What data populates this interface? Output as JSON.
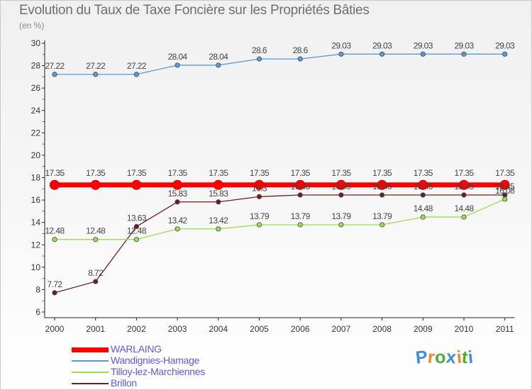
{
  "chart_data": {
    "type": "line",
    "title": "Evolution du Taux de Taxe Foncière sur les Propriétés Bâties",
    "ylabel": "(en %)",
    "xlabel": "",
    "categories": [
      "2000",
      "2001",
      "2002",
      "2003",
      "2004",
      "2005",
      "2006",
      "2007",
      "2008",
      "2009",
      "2010",
      "2011"
    ],
    "ylim": [
      6,
      30
    ],
    "yticks": [
      "6",
      "8",
      "10",
      "12",
      "14",
      "16",
      "18",
      "20",
      "22",
      "24",
      "26",
      "28",
      "30"
    ],
    "grid": false,
    "legend_position": "bottom-left",
    "series": [
      {
        "name": "WARLAING",
        "color": "#ff0000",
        "values": [
          17.35,
          17.35,
          17.35,
          17.35,
          17.35,
          17.35,
          17.35,
          17.35,
          17.35,
          17.35,
          17.35,
          17.35
        ],
        "labels": [
          "17.35",
          "17.35",
          "17.35",
          "17.35",
          "17.35",
          "17.35",
          "17.35",
          "17.35",
          "17.35",
          "17.35",
          "17.35",
          "17.35"
        ]
      },
      {
        "name": "Wandignies-Hamage",
        "color": "#5b9bd5",
        "values": [
          27.22,
          27.22,
          27.22,
          28.04,
          28.04,
          28.6,
          28.6,
          29.03,
          29.03,
          29.03,
          29.03,
          29.03
        ],
        "labels": [
          "27.22",
          "27.22",
          "27.22",
          "28.04",
          "28.04",
          "28.6",
          "28.6",
          "29.03",
          "29.03",
          "29.03",
          "29.03",
          "29.03"
        ]
      },
      {
        "name": "Tilloy-lez-Marchiennes",
        "color": "#99dd55",
        "values": [
          12.48,
          12.48,
          12.48,
          13.42,
          13.42,
          13.79,
          13.79,
          13.79,
          13.79,
          14.48,
          14.48,
          16.08
        ],
        "labels": [
          "12.48",
          "12.48",
          "12.48",
          "13.42",
          "13.42",
          "13.79",
          "13.79",
          "13.79",
          "13.79",
          "14.48",
          "14.48",
          "16.08"
        ]
      },
      {
        "name": "Brillon",
        "color": "#6b2020",
        "values": [
          7.72,
          8.72,
          13.63,
          15.83,
          15.83,
          16.3,
          16.45,
          16.45,
          16.45,
          16.45,
          16.45,
          16.45
        ],
        "labels": [
          "7.72",
          "8.72",
          "13.63",
          "15.83",
          "15.83",
          "16.3",
          "16.45",
          "16.45",
          "16.45",
          "16.45",
          "16.45",
          "16.45"
        ]
      }
    ]
  },
  "logo": {
    "letters": [
      "P",
      "r",
      "o",
      "x",
      "i",
      "t",
      "i"
    ],
    "colors": [
      "#3d8fd9",
      "#ee8822",
      "#55aa33",
      "#3d8fd9",
      "#ee8822",
      "#55aa33",
      "#3d8fd9"
    ]
  }
}
